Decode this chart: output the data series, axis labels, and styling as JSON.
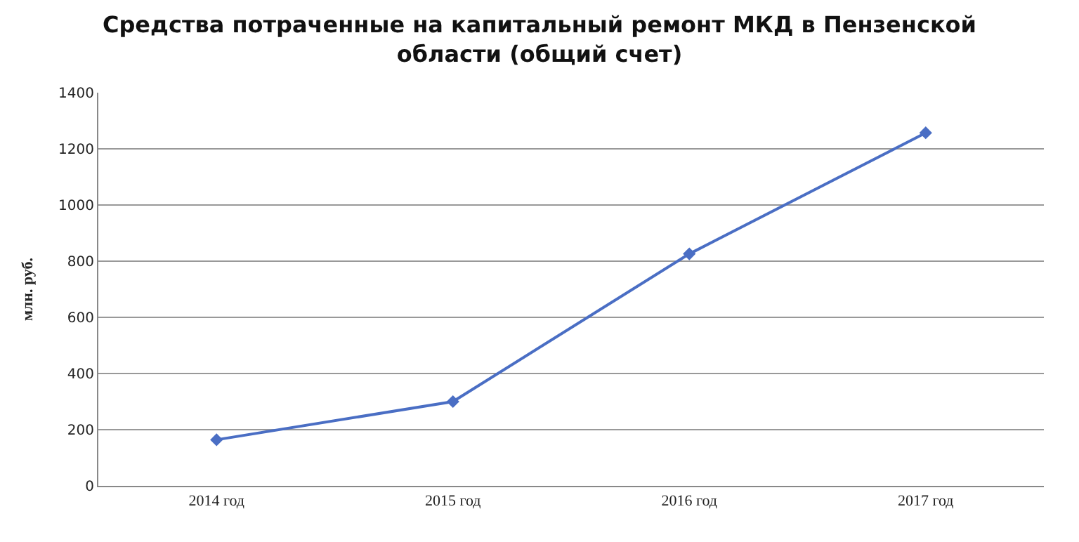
{
  "chart_data": {
    "type": "line",
    "title": "Средства потраченные на капитальный ремонт МКД в Пензенской области (общий счет)",
    "ylabel": "млн. руб.",
    "categories": [
      "2014 год",
      "2015 год",
      "2016 год",
      "2017 год"
    ],
    "series": [
      {
        "color": "#4a6ec4",
        "values": [
          164,
          300,
          826,
          1257
        ]
      }
    ],
    "ylim": [
      0,
      1400
    ],
    "yticks": [
      0,
      200,
      400,
      600,
      800,
      1000,
      1200,
      1400
    ],
    "grid": "y",
    "marker": "diamond",
    "line_style": "solid",
    "legend": false
  }
}
